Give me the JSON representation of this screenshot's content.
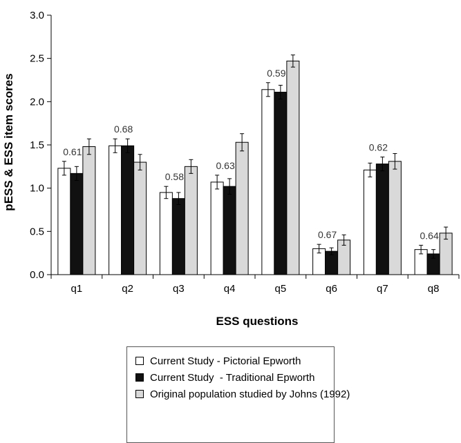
{
  "chart_data": {
    "type": "bar",
    "title": "",
    "xlabel": "ESS questions",
    "ylabel": "pESS & ESS item scores",
    "ylim": [
      0,
      3.0
    ],
    "yticks": [
      "0.0",
      "0.5",
      "1.0",
      "1.5",
      "2.0",
      "2.5",
      "3.0"
    ],
    "grid": false,
    "legend_position": "bottom",
    "categories": [
      "q1",
      "q2",
      "q3",
      "q4",
      "q5",
      "q6",
      "q7",
      "q8"
    ],
    "series": [
      {
        "name": "Current Study - Pictorial Epworth",
        "color": "#ffffff",
        "values": [
          1.23,
          1.49,
          0.95,
          1.07,
          2.14,
          0.3,
          1.21,
          0.29
        ],
        "errors": [
          0.08,
          0.08,
          0.07,
          0.08,
          0.08,
          0.05,
          0.08,
          0.05
        ]
      },
      {
        "name": "Current Study  - Traditional Epworth",
        "color": "#111111",
        "values": [
          1.17,
          1.49,
          0.88,
          1.02,
          2.11,
          0.27,
          1.28,
          0.24
        ],
        "errors": [
          0.08,
          0.08,
          0.07,
          0.09,
          0.08,
          0.04,
          0.08,
          0.05
        ]
      },
      {
        "name": "Original population studied by Johns (1992)",
        "color": "#d9d9d9",
        "values": [
          1.48,
          1.3,
          1.25,
          1.53,
          2.47,
          0.4,
          1.31,
          0.48
        ],
        "errors": [
          0.09,
          0.09,
          0.08,
          0.1,
          0.07,
          0.06,
          0.09,
          0.07
        ]
      }
    ],
    "annotations": [
      {
        "category": "q1",
        "text": "0.61"
      },
      {
        "category": "q2",
        "text": "0.68"
      },
      {
        "category": "q3",
        "text": "0.58"
      },
      {
        "category": "q4",
        "text": "0.63"
      },
      {
        "category": "q5",
        "text": "0.59"
      },
      {
        "category": "q6",
        "text": "0.67"
      },
      {
        "category": "q7",
        "text": "0.62"
      },
      {
        "category": "q8",
        "text": "0.64"
      }
    ]
  }
}
